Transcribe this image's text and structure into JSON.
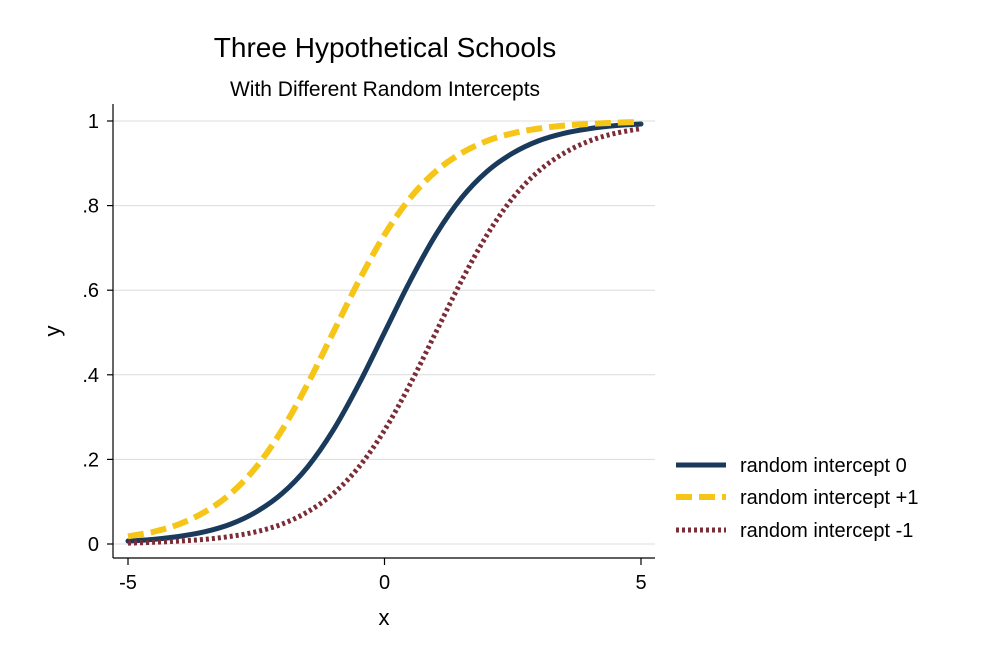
{
  "chart_data": {
    "type": "line",
    "title": "Three Hypothetical Schools",
    "subtitle": "With Different Random Intercepts",
    "xlabel": "x",
    "ylabel": "y",
    "xlim": [
      -5,
      5
    ],
    "ylim": [
      0,
      1
    ],
    "x_ticks": [
      -5,
      0,
      5
    ],
    "x_tick_labels": [
      "-5",
      "0",
      "5"
    ],
    "y_ticks": [
      0,
      0.2,
      0.4,
      0.6,
      0.8,
      1
    ],
    "y_tick_labels": [
      "0",
      ".2",
      ".4",
      ".6",
      ".8",
      "1"
    ],
    "grid": "horizontal",
    "legend_position": "right",
    "x": [
      -5,
      -4.5,
      -4,
      -3.5,
      -3,
      -2.5,
      -2,
      -1.5,
      -1,
      -0.5,
      0,
      0.5,
      1,
      1.5,
      2,
      2.5,
      3,
      3.5,
      4,
      4.5,
      5
    ],
    "series": [
      {
        "name": "random intercept 0",
        "color": "#1a3a5c",
        "style": "solid",
        "values": [
          0.007,
          0.011,
          0.018,
          0.029,
          0.047,
          0.076,
          0.119,
          0.182,
          0.269,
          0.378,
          0.5,
          0.622,
          0.731,
          0.818,
          0.881,
          0.924,
          0.953,
          0.971,
          0.982,
          0.989,
          0.993
        ]
      },
      {
        "name": "random intercept +1",
        "color": "#f5c518",
        "style": "dashed",
        "values": [
          0.018,
          0.029,
          0.047,
          0.076,
          0.119,
          0.182,
          0.269,
          0.378,
          0.5,
          0.622,
          0.731,
          0.818,
          0.881,
          0.924,
          0.953,
          0.971,
          0.982,
          0.989,
          0.993,
          0.996,
          0.998
        ]
      },
      {
        "name": "random intercept -1",
        "color": "#7b2c36",
        "style": "dotted",
        "values": [
          0.002,
          0.004,
          0.007,
          0.011,
          0.018,
          0.029,
          0.047,
          0.076,
          0.119,
          0.182,
          0.269,
          0.378,
          0.5,
          0.622,
          0.731,
          0.818,
          0.881,
          0.924,
          0.953,
          0.971,
          0.982
        ]
      }
    ]
  }
}
